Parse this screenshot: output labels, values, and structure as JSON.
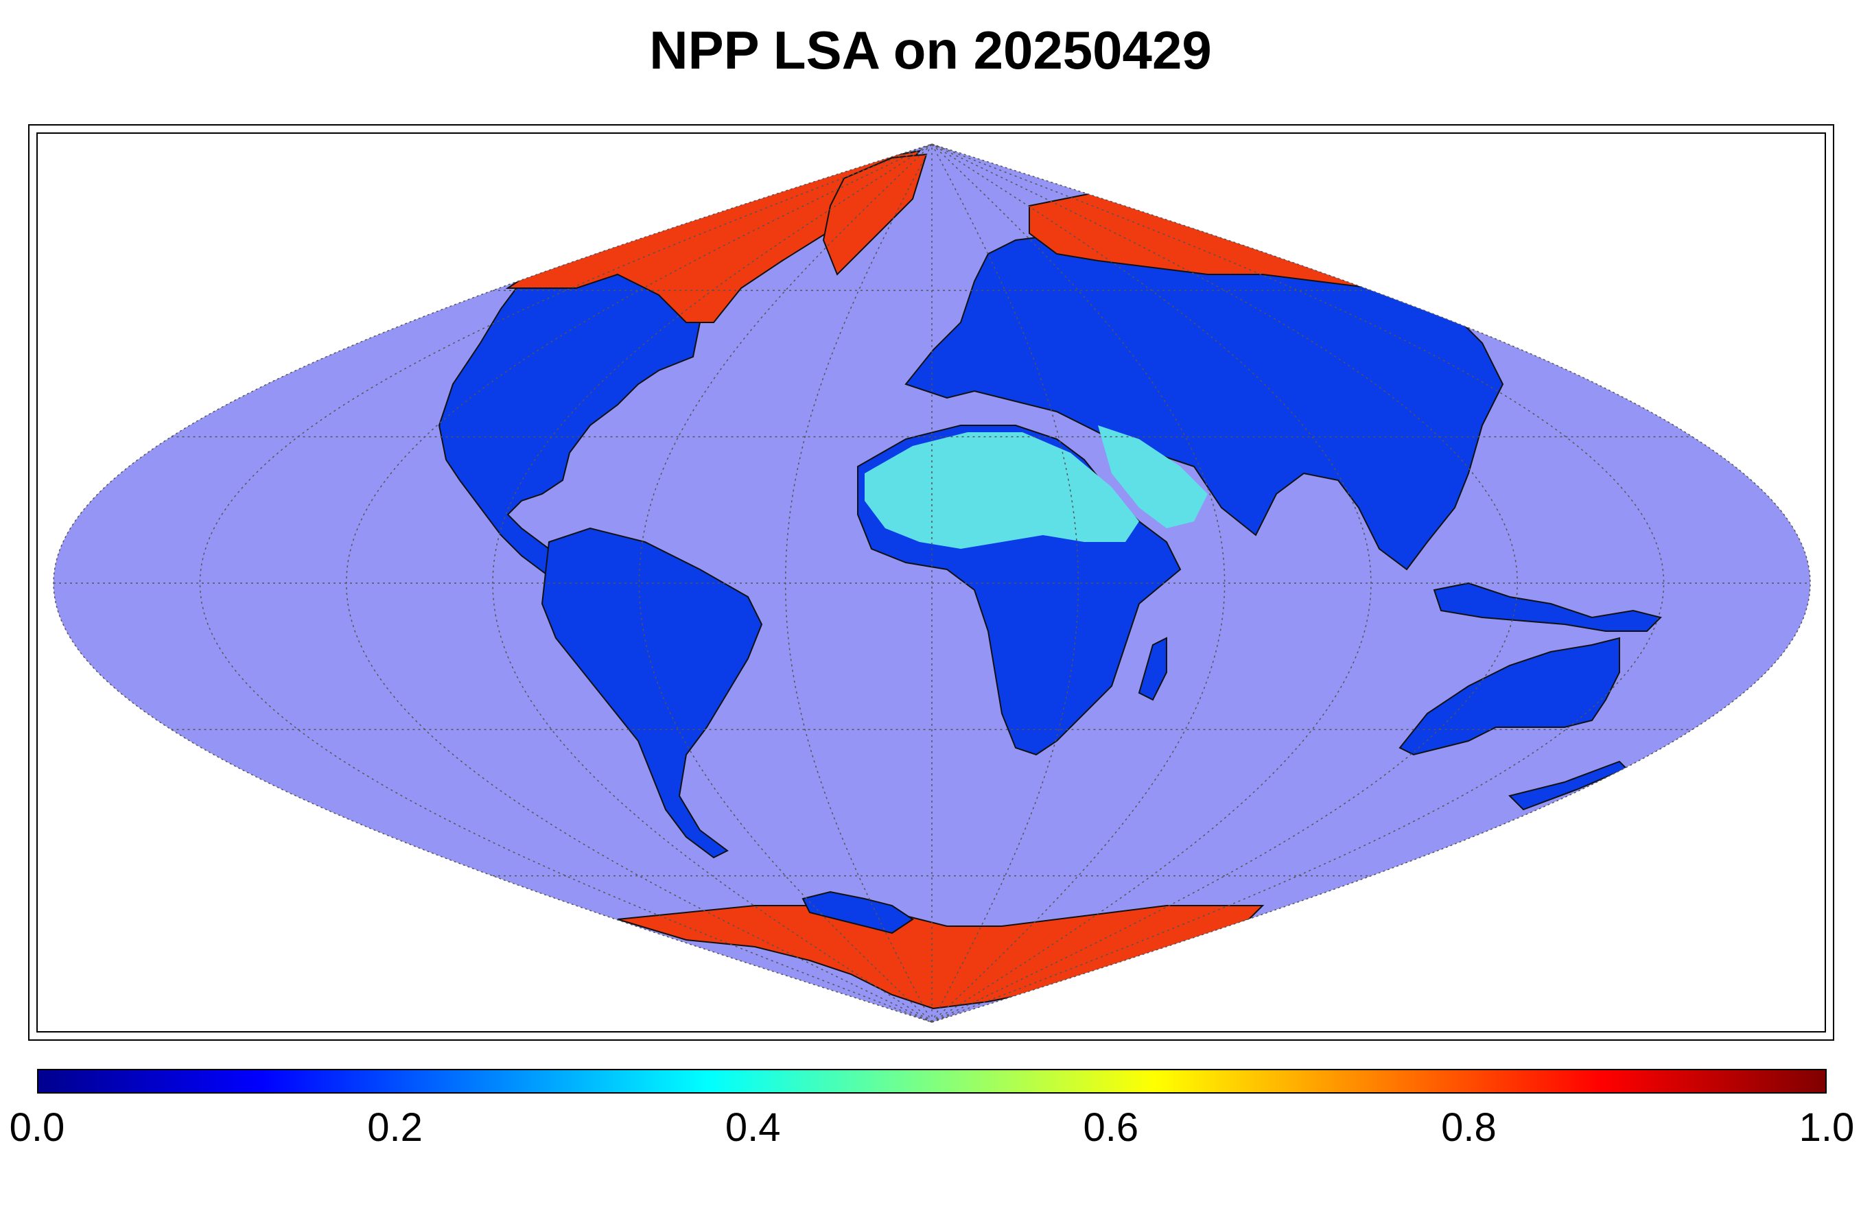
{
  "title": "NPP LSA on 20250429",
  "colors": {
    "ocean": "#9595f5",
    "land_low": "#0a3ce8",
    "desert": "#5fe0e6",
    "snow": "#f03a10",
    "coast": "#111111",
    "grid": "#555555"
  },
  "map": {
    "projection": "sinusoidal",
    "graticule": "dotted"
  },
  "colorbar": {
    "colormap": "jet",
    "range": [
      0.0,
      1.0
    ],
    "tick_labels": [
      "0.0",
      "0.2",
      "0.4",
      "0.6",
      "0.8",
      "1.0"
    ]
  }
}
